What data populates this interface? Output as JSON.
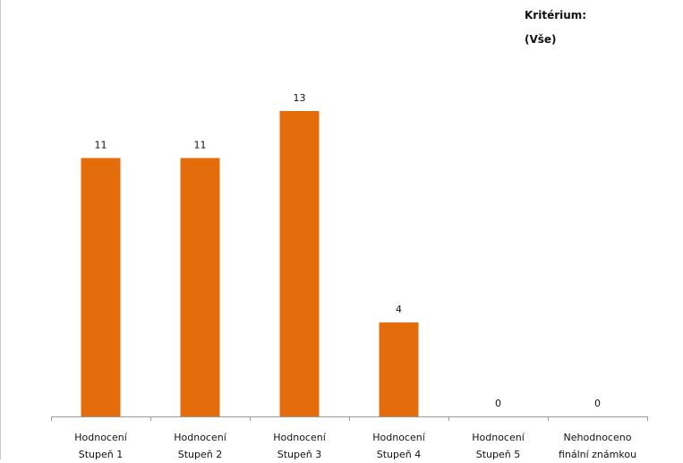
{
  "filter": {
    "label": "Kritérium:",
    "value": "(Vše)"
  },
  "chart_data": {
    "type": "bar",
    "categories": [
      [
        "Hodnocení",
        "Stupeň 1"
      ],
      [
        "Hodnocení",
        "Stupeň 2"
      ],
      [
        "Hodnocení",
        "Stupeň 3"
      ],
      [
        "Hodnocení",
        "Stupeň 4"
      ],
      [
        "Hodnocení",
        "Stupeň 5"
      ],
      [
        "Nehodnoceno",
        "finální známkou"
      ]
    ],
    "values": [
      11,
      11,
      13,
      4,
      0,
      0
    ],
    "data_labels": [
      "11",
      "11",
      "13",
      "4",
      "0",
      "0"
    ],
    "bar_color": "#E46C0A",
    "title": "",
    "xlabel": "",
    "ylabel": "",
    "ylim": [
      0,
      13
    ],
    "grid": false,
    "legend": "none"
  }
}
